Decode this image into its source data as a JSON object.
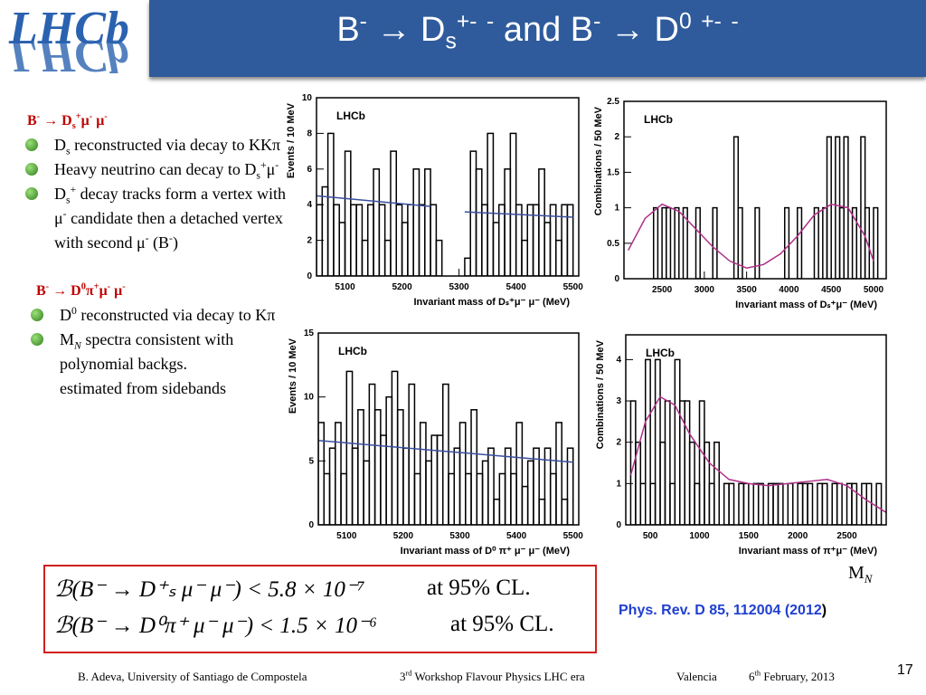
{
  "header": {
    "logo": "LHCb",
    "title": [
      "B",
      "-",
      " → D",
      "s",
      "+",
      "",
      "-",
      " ",
      "-",
      " and B",
      "-",
      " → D",
      "0",
      " ",
      "+",
      "",
      "-",
      " ",
      "-"
    ]
  },
  "left": {
    "sections": [
      {
        "heading": [
          "B",
          "-",
          " → D",
          "s",
          "+",
          "μ",
          "-",
          " μ",
          "-"
        ],
        "bullets": [
          [
            "D",
            "s",
            " reconstructed via decay to KKπ"
          ],
          [
            "Heavy neutrino can decay to D",
            "s",
            "+",
            "μ",
            "-"
          ],
          [
            "D",
            "s",
            "+",
            " decay tracks form a vertex with μ",
            "-",
            " candidate then a detached vertex with second μ",
            "-",
            "  (B",
            "-",
            ")"
          ]
        ]
      },
      {
        "heading": [
          "B",
          "-",
          " → D",
          "0",
          "π",
          "+",
          "μ",
          "-",
          " μ",
          "-"
        ],
        "bullets": [
          [
            "D",
            "0",
            " reconstructed via decay to Kπ"
          ],
          [
            "M",
            "N",
            " spectra consistent with polynomial backgs."
          ]
        ],
        "note": "estimated from sidebands"
      }
    ]
  },
  "results": [
    {
      "formula": "ℬ(B⁻ → D⁺ₛ μ⁻ μ⁻) < 5.8 × 10⁻⁷",
      "cl": "at 95% CL."
    },
    {
      "formula": "ℬ(B⁻ → D⁰π⁺ μ⁻ μ⁻) < 1.5 × 10⁻⁶",
      "cl": "at 95% CL."
    }
  ],
  "mn_label": [
    "M",
    "N"
  ],
  "reference": [
    "Phys. Rev. D 85, 112004 (2012",
    ")"
  ],
  "footer": {
    "author": "B. Adeva, University of  Santiago de Compostela",
    "workshop": [
      "3",
      "rd",
      " Workshop Flavour Physics LHC era"
    ],
    "place": "Valencia",
    "date": [
      "6",
      "th",
      " February, 2013"
    ],
    "page": "17"
  },
  "chart_data": [
    {
      "type": "histogram",
      "title": "LHCb",
      "xlabel": "Invariant mass of Dₛ⁺μ⁻ μ⁻ (MeV)",
      "ylabel": "Events / 10 MeV",
      "xlim": [
        5050,
        5510
      ],
      "ylim": [
        0,
        10
      ],
      "xticks": [
        5100,
        5200,
        5300,
        5400,
        5500
      ],
      "yticks": [
        0,
        2,
        4,
        6,
        8,
        10
      ],
      "bins": [
        5050,
        5060,
        5070,
        5080,
        5090,
        5100,
        5110,
        5120,
        5130,
        5140,
        5150,
        5160,
        5170,
        5180,
        5190,
        5200,
        5210,
        5220,
        5230,
        5240,
        5250,
        5260,
        5270,
        5280,
        5290,
        5300,
        5310,
        5320,
        5330,
        5340,
        5350,
        5360,
        5370,
        5380,
        5390,
        5400,
        5410,
        5420,
        5430,
        5440,
        5450,
        5460,
        5470,
        5480,
        5490,
        5500
      ],
      "values": [
        4,
        5,
        8,
        4,
        3,
        7,
        4,
        4,
        2,
        4,
        6,
        4,
        2,
        7,
        4,
        3,
        4,
        6,
        4,
        6,
        4,
        2,
        0,
        0,
        0,
        0,
        1,
        7,
        6,
        4,
        8,
        3,
        4,
        6,
        8,
        4,
        2,
        4,
        4,
        6,
        3,
        4,
        2,
        4,
        4
      ],
      "color": "#000000",
      "fit": {
        "color": "#3a4fa0",
        "x": [
          5050,
          5250,
          5280,
          5310,
          5500
        ],
        "values": [
          4.5,
          3.9,
          null,
          3.6,
          3.3
        ]
      }
    },
    {
      "type": "histogram",
      "title": "LHCb",
      "xlabel": "Invariant mass of Dₛ⁺μ⁻ (MeV)",
      "ylabel": "Combinations / 50 MeV",
      "xlim": [
        2050,
        5150
      ],
      "ylim": [
        0,
        2.5
      ],
      "xticks": [
        2500,
        3000,
        3500,
        4000,
        4500,
        5000
      ],
      "yticks": [
        0,
        0.5,
        1,
        1.5,
        2,
        2.5
      ],
      "bins": [
        2100,
        2150,
        2200,
        2250,
        2300,
        2350,
        2400,
        2450,
        2500,
        2550,
        2600,
        2650,
        2700,
        2750,
        2800,
        2850,
        2900,
        2950,
        3000,
        3050,
        3100,
        3150,
        3200,
        3250,
        3300,
        3350,
        3400,
        3450,
        3500,
        3550,
        3600,
        3650,
        3700,
        3750,
        3800,
        3850,
        3900,
        3950,
        4000,
        4050,
        4100,
        4150,
        4200,
        4250,
        4300,
        4350,
        4400,
        4450,
        4500,
        4550,
        4600,
        4650,
        4700,
        4750,
        4800,
        4850,
        4900,
        4950,
        5000,
        5050,
        5100
      ],
      "values": [
        0,
        0,
        0,
        0,
        0,
        0,
        1,
        0,
        1,
        1,
        0,
        1,
        0,
        1,
        0,
        0,
        1,
        0,
        0,
        0,
        1,
        0,
        0,
        0,
        0,
        2,
        1,
        0,
        0,
        0,
        1,
        0,
        0,
        0,
        0,
        0,
        0,
        1,
        0,
        0,
        1,
        0,
        0,
        0,
        1,
        0,
        1,
        2,
        0,
        2,
        1,
        2,
        0,
        1,
        0,
        2,
        1,
        0,
        1,
        0
      ],
      "color": "#000000",
      "fit": {
        "color": "#b0308a",
        "x": [
          2100,
          2300,
          2500,
          2700,
          2900,
          3100,
          3300,
          3500,
          3700,
          3900,
          4100,
          4300,
          4500,
          4700,
          4900,
          5000
        ],
        "values": [
          0.4,
          0.85,
          1.05,
          0.95,
          0.7,
          0.45,
          0.25,
          0.15,
          0.2,
          0.35,
          0.6,
          0.9,
          1.05,
          1.0,
          0.6,
          0.25
        ]
      }
    },
    {
      "type": "histogram",
      "title": "LHCb",
      "xlabel": "Invariant mass of D⁰ π⁺ μ⁻ μ⁻ (MeV)",
      "ylabel": "Events / 10 MeV",
      "xlim": [
        5050,
        5510
      ],
      "ylim": [
        0,
        15
      ],
      "xticks": [
        5100,
        5200,
        5300,
        5400,
        5500
      ],
      "yticks": [
        0,
        5,
        10,
        15
      ],
      "bins": [
        5050,
        5060,
        5070,
        5080,
        5090,
        5100,
        5110,
        5120,
        5130,
        5140,
        5150,
        5160,
        5170,
        5180,
        5190,
        5200,
        5210,
        5220,
        5230,
        5240,
        5250,
        5260,
        5270,
        5280,
        5290,
        5300,
        5310,
        5320,
        5330,
        5340,
        5350,
        5360,
        5370,
        5380,
        5390,
        5400,
        5410,
        5420,
        5430,
        5440,
        5450,
        5460,
        5470,
        5480,
        5490,
        5500
      ],
      "values": [
        8,
        4,
        6,
        8,
        4,
        12,
        6,
        9,
        5,
        11,
        9,
        7,
        10,
        12,
        9,
        6,
        11,
        4,
        8,
        5,
        7,
        7,
        11,
        4,
        6,
        8,
        4,
        9,
        4,
        5,
        6,
        2,
        4,
        6,
        4,
        8,
        3,
        5,
        6,
        2,
        6,
        4,
        8,
        2,
        6
      ],
      "color": "#000000",
      "fit": {
        "color": "#3a4fa0",
        "x": [
          5050,
          5500
        ],
        "values": [
          6.6,
          4.9
        ]
      }
    },
    {
      "type": "histogram",
      "title": "LHCb",
      "xlabel": "Invariant mass of π⁺μ⁻ (MeV)",
      "ylabel": "Combinations / 50 MeV",
      "xlim": [
        250,
        2900
      ],
      "ylim": [
        0,
        4.6
      ],
      "xticks": [
        500,
        1000,
        1500,
        2000,
        2500
      ],
      "yticks": [
        0,
        1,
        2,
        3,
        4
      ],
      "bins": [
        300,
        350,
        400,
        450,
        500,
        550,
        600,
        650,
        700,
        750,
        800,
        850,
        900,
        950,
        1000,
        1050,
        1100,
        1150,
        1200,
        1250,
        1300,
        1350,
        1400,
        1450,
        1500,
        1550,
        1600,
        1650,
        1700,
        1750,
        1800,
        1850,
        1900,
        1950,
        2000,
        2050,
        2100,
        2150,
        2200,
        2250,
        2300,
        2350,
        2400,
        2450,
        2500,
        2550,
        2600,
        2650,
        2700,
        2750,
        2800,
        2850,
        2900
      ],
      "values": [
        3,
        2,
        1,
        4,
        1,
        4,
        2,
        3,
        1,
        4,
        3,
        3,
        2,
        1,
        3,
        2,
        1,
        2,
        0,
        1,
        1,
        0,
        1,
        1,
        0,
        1,
        1,
        0,
        1,
        1,
        1,
        0,
        1,
        0,
        1,
        1,
        1,
        0,
        1,
        1,
        0,
        1,
        1,
        0,
        1,
        1,
        0,
        1,
        1,
        0,
        1,
        0
      ],
      "color": "#000000",
      "fit": {
        "color": "#b0308a",
        "x": [
          300,
          450,
          600,
          750,
          900,
          1100,
          1300,
          1500,
          1700,
          1900,
          2100,
          2300,
          2500,
          2700,
          2900
        ],
        "values": [
          1.2,
          2.5,
          3.1,
          2.9,
          2.2,
          1.5,
          1.1,
          1.0,
          0.95,
          1.0,
          1.05,
          1.1,
          0.95,
          0.6,
          0.3
        ]
      }
    }
  ]
}
